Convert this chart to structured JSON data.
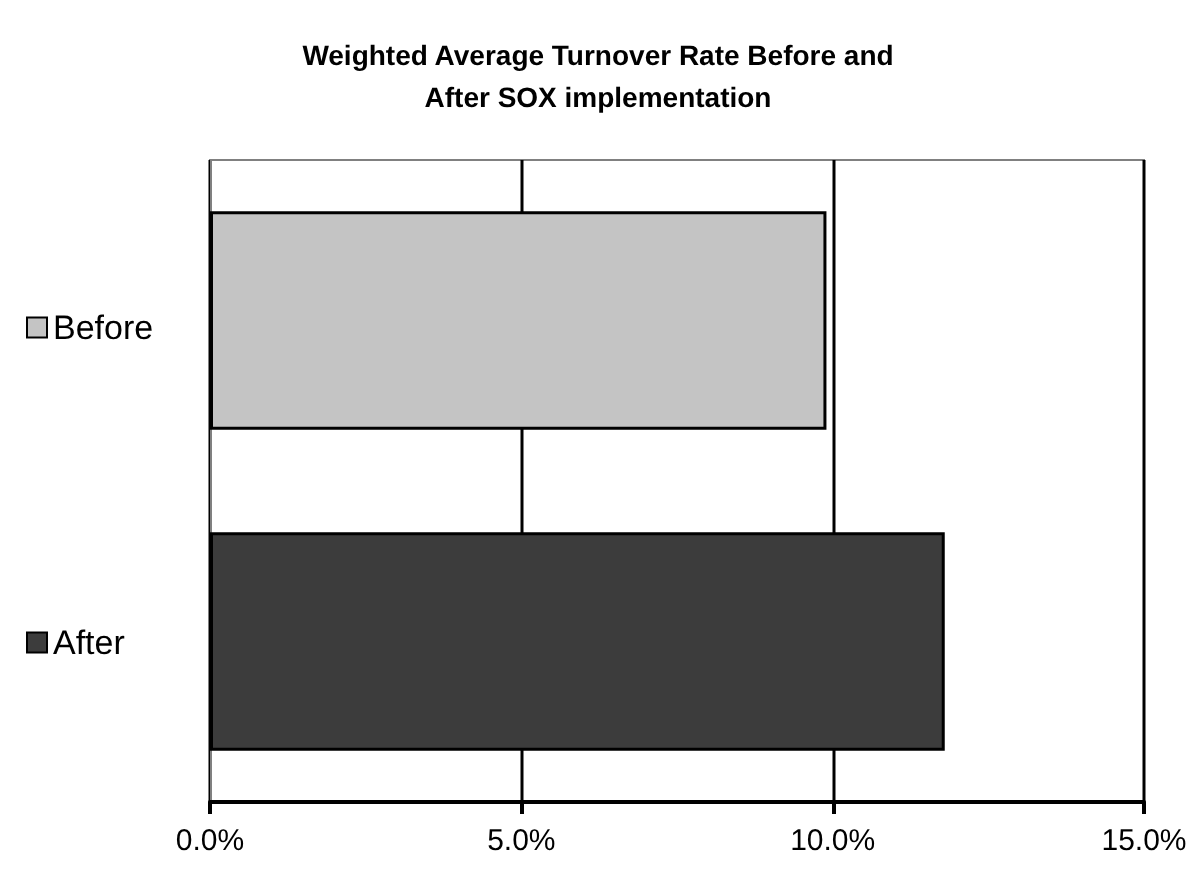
{
  "chart_data": {
    "type": "bar",
    "orientation": "horizontal",
    "stacked": true,
    "title": "Weighted Average Turnover Rate Before and\nAfter SOX implementation",
    "categories": [
      null,
      null
    ],
    "series": [
      {
        "name": "Before",
        "color": "#c4c4c4",
        "values": [
          9.9,
          null
        ]
      },
      {
        "name": "After",
        "color": "#3c3c3c",
        "values": [
          null,
          11.8
        ]
      }
    ],
    "xlim": [
      0,
      15
    ],
    "xticks": [
      {
        "value": 0,
        "label": "0.0%"
      },
      {
        "value": 5,
        "label": "5.0%"
      },
      {
        "value": 10,
        "label": "10.0%"
      },
      {
        "value": 15,
        "label": "15.0%"
      }
    ],
    "grid": "x",
    "legend": "left"
  }
}
